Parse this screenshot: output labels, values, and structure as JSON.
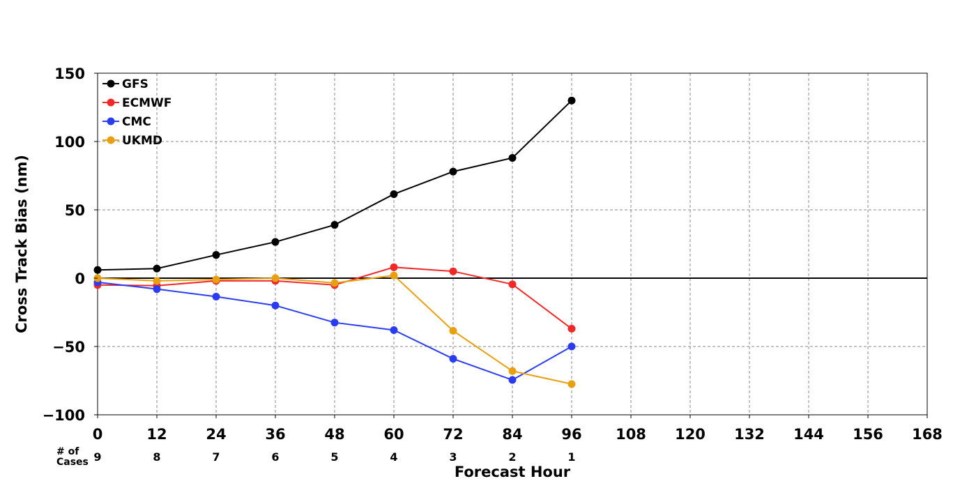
{
  "chart_data": {
    "type": "line",
    "xlabel": "Forecast Hour",
    "ylabel": "Cross Track Bias (nm)",
    "xlim": [
      0,
      168
    ],
    "ylim": [
      -100,
      150
    ],
    "x_ticks": [
      0,
      12,
      24,
      36,
      48,
      60,
      72,
      84,
      96,
      108,
      120,
      132,
      144,
      156,
      168
    ],
    "y_ticks": [
      -100,
      -50,
      0,
      50,
      100,
      150
    ],
    "y_tick_labels": [
      "−100",
      "−50",
      "0",
      "50",
      "100",
      "150"
    ],
    "grid": true,
    "legend_position": "top-left",
    "zero_line": true,
    "x": [
      0,
      12,
      24,
      36,
      48,
      60,
      72,
      84,
      96
    ],
    "series": [
      {
        "name": "GFS",
        "color": "#000000",
        "values": [
          6,
          7,
          17,
          26.5,
          39,
          61.5,
          78,
          88,
          130
        ]
      },
      {
        "name": "ECMWF",
        "color": "#f02828",
        "values": [
          -5,
          -5.5,
          -2,
          -2,
          -5,
          8,
          5,
          -4.5,
          -37
        ]
      },
      {
        "name": "CMC",
        "color": "#2a3cf0",
        "values": [
          -3,
          -8,
          -13.5,
          -20,
          -32.5,
          -38,
          -59,
          -74.5,
          -50
        ]
      },
      {
        "name": "UKMD",
        "color": "#e8a010",
        "values": [
          0,
          -2,
          -1,
          0,
          -3.5,
          2,
          -38.5,
          -68,
          -77.5
        ]
      }
    ],
    "cases_label": [
      "# of",
      "Cases"
    ],
    "cases_x": [
      0,
      12,
      24,
      36,
      48,
      60,
      72,
      84,
      96
    ],
    "cases": [
      "9",
      "8",
      "7",
      "6",
      "5",
      "4",
      "3",
      "2",
      "1"
    ]
  }
}
